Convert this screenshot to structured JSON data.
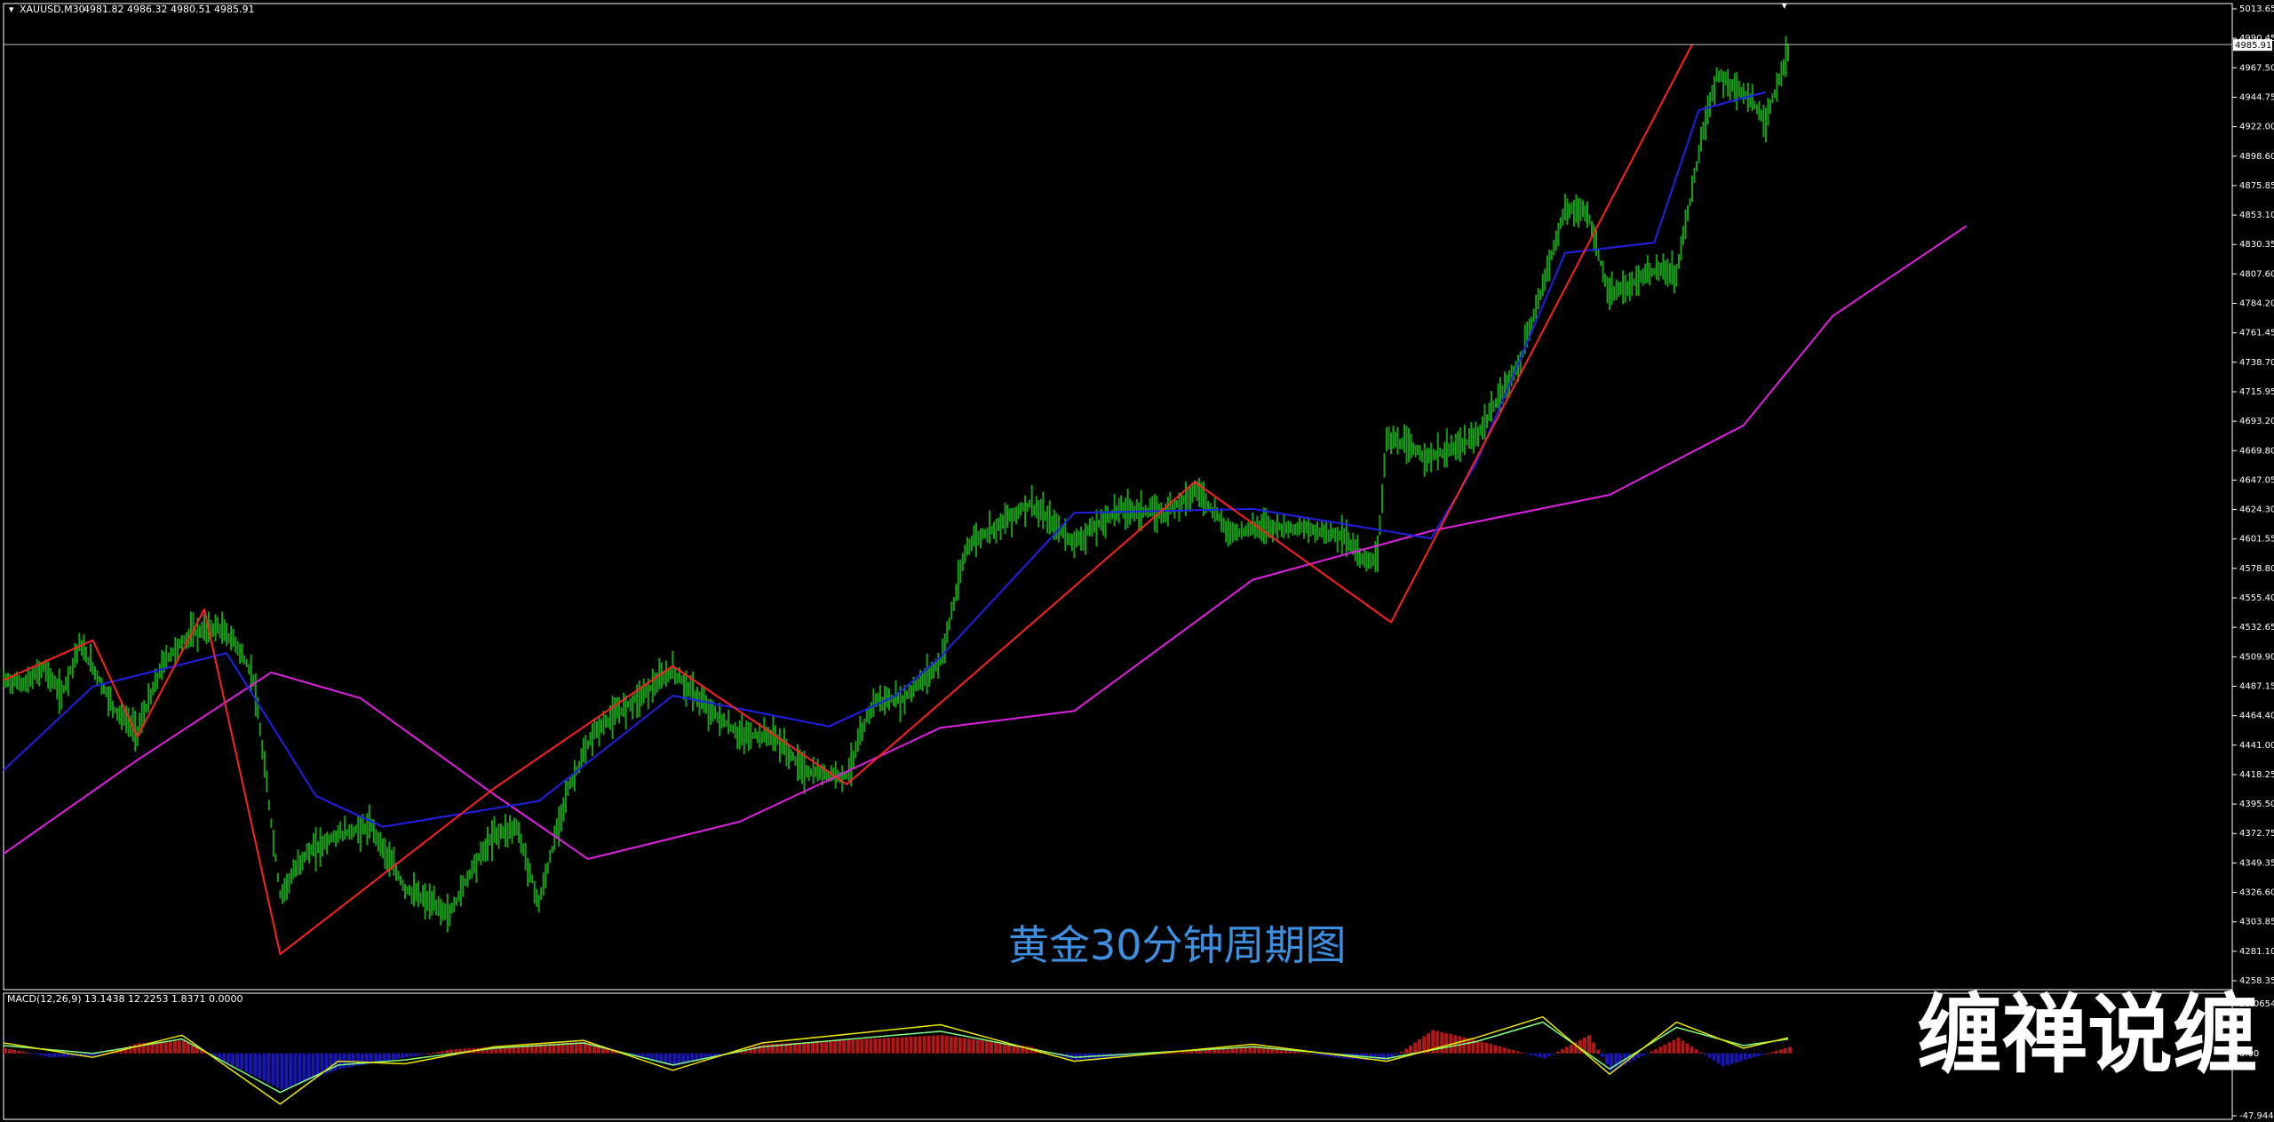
{
  "header": {
    "symbol": "XAUUSD,M30",
    "ohlc": "4981.82 4986.32 4980.51 4985.91",
    "macd_label": "MACD(12,26,9) 13.1438 12.2253 1.8371 0.0000"
  },
  "caption": "黄金30分钟周期图",
  "watermark": "缠禅说缠",
  "current_price_label": "4985.91",
  "colors": {
    "background": "#000000",
    "candle": "#18a018",
    "fast_ma": "#2020e8",
    "slow_ma": "#e020e0",
    "zigzag": "#ff2020",
    "macd_line": "#e8e800",
    "signal_line": "#80ff80",
    "hist_pos": "#b01818",
    "hist_neg": "#1818b0",
    "caption": "#3d8fe0",
    "axis_text": "#ffffff",
    "price_line": "#c0c0c0"
  },
  "chart_data": [
    {
      "type": "line",
      "title": "XAUUSD,M30",
      "y_ticks": [
        "5013.65",
        "4990.45",
        "4967.50",
        "4944.75",
        "4922.00",
        "4898.60",
        "4875.85",
        "4853.10",
        "4830.35",
        "4807.60",
        "4784.20",
        "4761.45",
        "4738.70",
        "4715.95",
        "4693.20",
        "4669.80",
        "4647.05",
        "4624.30",
        "4601.55",
        "4578.80",
        "4555.40",
        "4532.65",
        "4509.90",
        "4487.15",
        "4464.40",
        "4441.00",
        "4418.25",
        "4395.50",
        "4372.75",
        "4349.35",
        "4326.60",
        "4303.85",
        "4281.10",
        "4258.35"
      ],
      "ylim": [
        4258.35,
        5013.65
      ],
      "grid": false,
      "series": [
        {
          "role": "zigzag",
          "points": [
            [
              0,
              4492
            ],
            [
              40,
              4523
            ],
            [
              60,
              4448
            ],
            [
              90,
              4547
            ],
            [
              124,
              4279
            ],
            [
              220,
              4408
            ],
            [
              300,
              4503
            ],
            [
              378,
              4411
            ],
            [
              534,
              4646
            ],
            [
              622,
              4537
            ],
            [
              757,
              4986
            ]
          ]
        },
        {
          "role": "slow_ma",
          "points": [
            [
              0,
              4357
            ],
            [
              60,
              4430
            ],
            [
              120,
              4498
            ],
            [
              160,
              4478
            ],
            [
              220,
              4403
            ],
            [
              262,
              4353
            ],
            [
              330,
              4382
            ],
            [
              420,
              4455
            ],
            [
              480,
              4468
            ],
            [
              560,
              4570
            ],
            [
              640,
              4608
            ],
            [
              720,
              4636
            ],
            [
              780,
              4690
            ],
            [
              820,
              4775
            ],
            [
              880,
              4845
            ]
          ]
        },
        {
          "role": "fast_ma",
          "points": [
            [
              0,
              4422
            ],
            [
              40,
              4487
            ],
            [
              100,
              4513
            ],
            [
              140,
              4402
            ],
            [
              170,
              4378
            ],
            [
              240,
              4398
            ],
            [
              300,
              4480
            ],
            [
              370,
              4456
            ],
            [
              400,
              4480
            ],
            [
              420,
              4510
            ],
            [
              480,
              4622
            ],
            [
              560,
              4625
            ],
            [
              640,
              4602
            ],
            [
              660,
              4660
            ],
            [
              700,
              4824
            ],
            [
              740,
              4832
            ],
            [
              760,
              4935
            ],
            [
              790,
              4949
            ]
          ]
        },
        {
          "role": "price",
          "points": [
            [
              0,
              4492
            ],
            [
              10,
              4489
            ],
            [
              18,
              4502
            ],
            [
              26,
              4480
            ],
            [
              34,
              4520
            ],
            [
              40,
              4502
            ],
            [
              50,
              4469
            ],
            [
              60,
              4452
            ],
            [
              72,
              4507
            ],
            [
              84,
              4528
            ],
            [
              96,
              4533
            ],
            [
              104,
              4521
            ],
            [
              112,
              4494
            ],
            [
              124,
              4325
            ],
            [
              135,
              4356
            ],
            [
              150,
              4372
            ],
            [
              165,
              4378
            ],
            [
              180,
              4330
            ],
            [
              200,
              4310
            ],
            [
              210,
              4346
            ],
            [
              220,
              4372
            ],
            [
              230,
              4378
            ],
            [
              240,
              4318
            ],
            [
              252,
              4403
            ],
            [
              265,
              4452
            ],
            [
              280,
              4473
            ],
            [
              300,
              4499
            ],
            [
              315,
              4471
            ],
            [
              330,
              4449
            ],
            [
              345,
              4449
            ],
            [
              360,
              4420
            ],
            [
              378,
              4418
            ],
            [
              390,
              4476
            ],
            [
              403,
              4477
            ],
            [
              420,
              4506
            ],
            [
              432,
              4597
            ],
            [
              460,
              4629
            ],
            [
              480,
              4599
            ],
            [
              500,
              4625
            ],
            [
              520,
              4622
            ],
            [
              535,
              4640
            ],
            [
              550,
              4606
            ],
            [
              565,
              4612
            ],
            [
              580,
              4610
            ],
            [
              600,
              4605
            ],
            [
              612,
              4582
            ],
            [
              616,
              4591
            ],
            [
              620,
              4680
            ],
            [
              640,
              4665
            ],
            [
              660,
              4680
            ],
            [
              680,
              4740
            ],
            [
              700,
              4858
            ],
            [
              710,
              4855
            ],
            [
              720,
              4790
            ],
            [
              740,
              4810
            ],
            [
              750,
              4808
            ],
            [
              760,
              4902
            ],
            [
              768,
              4962
            ],
            [
              780,
              4948
            ],
            [
              790,
              4928
            ],
            [
              800,
              4980
            ]
          ]
        }
      ]
    },
    {
      "type": "bar",
      "title": "MACD(12,26,9)",
      "y_ticks": [
        "38.0654",
        "0.00",
        "-47.9441"
      ],
      "ylim": [
        -47.9441,
        38.0654
      ],
      "series": [
        {
          "role": "macd_line",
          "points": [
            [
              0,
              8
            ],
            [
              40,
              -3
            ],
            [
              80,
              14
            ],
            [
              124,
              -39
            ],
            [
              150,
              -6
            ],
            [
              180,
              -8
            ],
            [
              220,
              5
            ],
            [
              260,
              10
            ],
            [
              300,
              -13
            ],
            [
              340,
              8
            ],
            [
              420,
              22
            ],
            [
              480,
              -6
            ],
            [
              560,
              7
            ],
            [
              620,
              -6
            ],
            [
              660,
              12
            ],
            [
              690,
              28
            ],
            [
              720,
              -16
            ],
            [
              750,
              24
            ],
            [
              780,
              4
            ],
            [
              800,
              12
            ]
          ]
        },
        {
          "role": "signal_line",
          "points": [
            [
              0,
              6
            ],
            [
              40,
              0
            ],
            [
              80,
              11
            ],
            [
              124,
              -30
            ],
            [
              150,
              -9
            ],
            [
              180,
              -5
            ],
            [
              220,
              4
            ],
            [
              260,
              8
            ],
            [
              300,
              -9
            ],
            [
              340,
              5
            ],
            [
              420,
              17
            ],
            [
              480,
              -3
            ],
            [
              560,
              5
            ],
            [
              620,
              -4
            ],
            [
              660,
              9
            ],
            [
              690,
              24
            ],
            [
              720,
              -12
            ],
            [
              750,
              20
            ],
            [
              780,
              6
            ],
            [
              800,
              11
            ]
          ]
        },
        {
          "role": "histogram",
          "values": [
            [
              0,
              4
            ],
            [
              20,
              -3
            ],
            [
              40,
              -2
            ],
            [
              60,
              8
            ],
            [
              80,
              10
            ],
            [
              110,
              -16
            ],
            [
              124,
              -28
            ],
            [
              150,
              -12
            ],
            [
              200,
              3
            ],
            [
              260,
              9
            ],
            [
              300,
              -10
            ],
            [
              340,
              7
            ],
            [
              420,
              14
            ],
            [
              460,
              5
            ],
            [
              480,
              -6
            ],
            [
              560,
              6
            ],
            [
              600,
              -4
            ],
            [
              620,
              -6
            ],
            [
              640,
              18
            ],
            [
              660,
              10
            ],
            [
              690,
              -4
            ],
            [
              710,
              14
            ],
            [
              720,
              -14
            ],
            [
              750,
              12
            ],
            [
              770,
              -10
            ],
            [
              800,
              5
            ]
          ]
        }
      ]
    }
  ]
}
